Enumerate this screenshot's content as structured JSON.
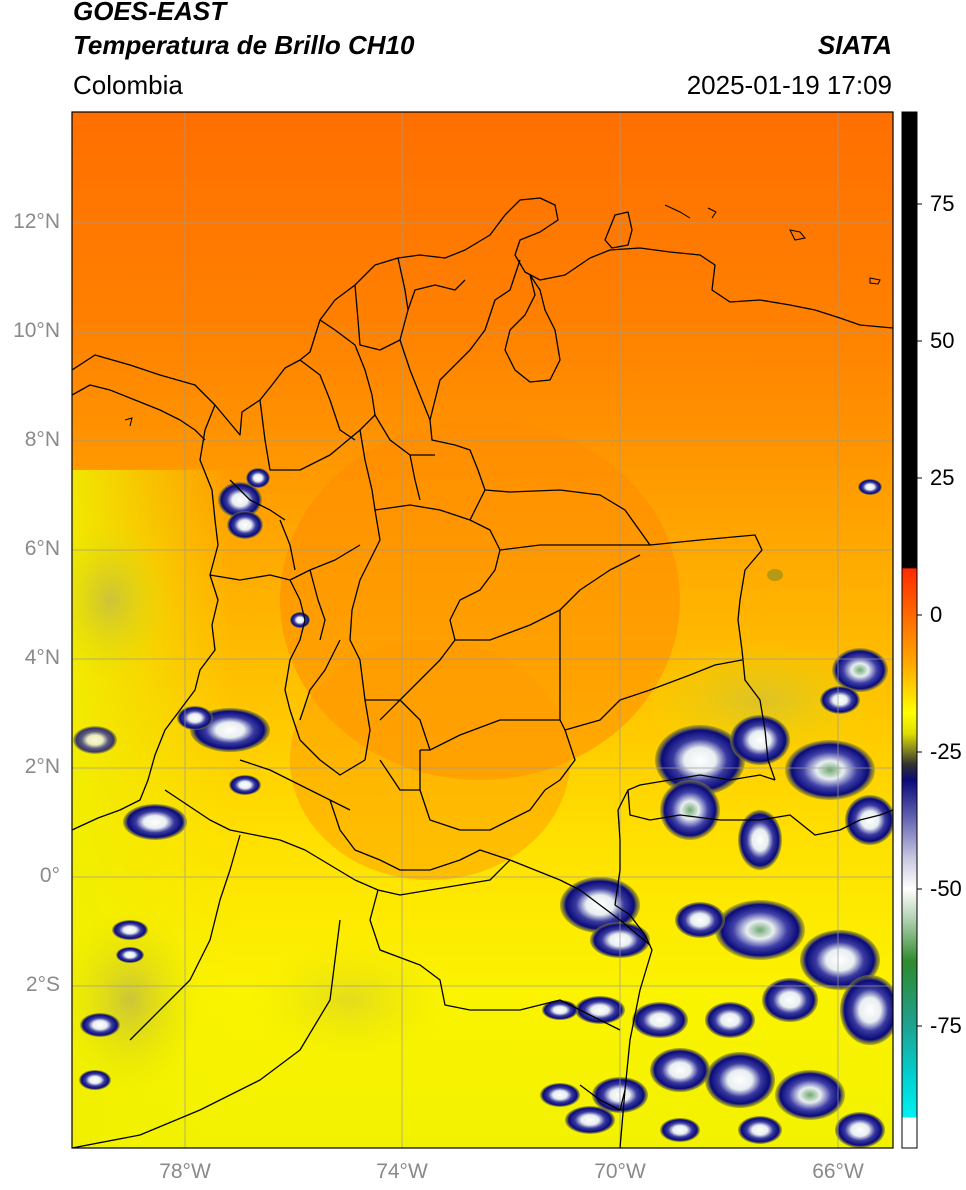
{
  "header": {
    "satellite": "GOES-EAST",
    "product": "Temperatura de Brillo CH10",
    "region": "Colombia",
    "agency": "SIATA",
    "datetime": "2025-01-19 17:09"
  },
  "axes": {
    "lat_labels": [
      "12°N",
      "10°N",
      "8°N",
      "6°N",
      "4°N",
      "2°N",
      "0°",
      "2°S"
    ],
    "lon_labels": [
      "78°W",
      "74°W",
      "70°W",
      "66°W"
    ]
  },
  "colorbar": {
    "tick_labels": [
      "75",
      "50",
      "25",
      "0",
      "-25",
      "-50",
      "-75"
    ],
    "colors": {
      "black": "#000000",
      "red": "#ff2a00",
      "orange": "#ff9900",
      "yellow": "#ffff00",
      "olive": "#8a8a20",
      "navy": "#0a0a7a",
      "white": "#ffffff",
      "green": "#2e8b2e",
      "cyan": "#00e5e5"
    }
  },
  "map_colors": {
    "warm_orange": "#ff7a00",
    "mid_orange": "#ff9a00",
    "yellow_orange": "#ffc400",
    "yellow": "#f5f500",
    "cloud_navy": "#0b0b82",
    "cloud_white": "#ffffff",
    "border": "#000000",
    "grid": "#9a9a9a"
  }
}
